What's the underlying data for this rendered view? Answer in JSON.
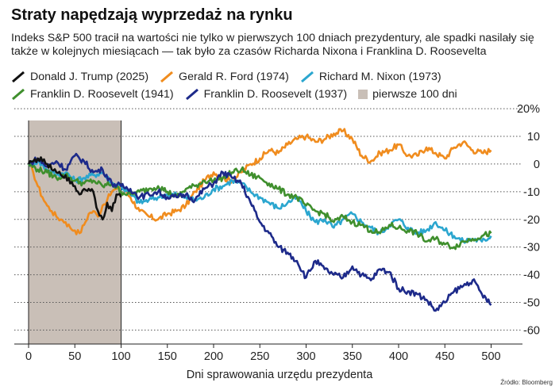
{
  "title": "Straty napędzają wyprzedaż na rynku",
  "subtitle": "Indeks S&P 500 tracił na wartości nie tylko w pierwszych 100 dniach prezydentury, ale spadki nasilały się także w kolejnych miesiącach — tak było za czasów Richarda Nixona i Franklina D. Roosevelta",
  "source": "Źródło: Bloomberg",
  "legend": {
    "trump": "Donald J. Trump (2025)",
    "ford": "Gerald R. Ford (1974)",
    "nixon": "Richard M. Nixon (1973)",
    "fdr41": "Franklin D. Roosevelt (1941)",
    "fdr37": "Franklin D. Roosevelt (1937)",
    "shade": "pierwsze 100 dni"
  },
  "chart_data": {
    "type": "line",
    "title": "Straty napędzają wyprzedaż na rynku",
    "xlabel": "Dni sprawowania urzędu prezydenta",
    "ylabel": "",
    "xlim": [
      0,
      520
    ],
    "ylim": [
      -65,
      22
    ],
    "x_ticks": [
      0,
      50,
      100,
      150,
      200,
      250,
      300,
      350,
      400,
      450,
      500
    ],
    "y_ticks": [
      -60,
      -50,
      -40,
      -30,
      -20,
      -10,
      0,
      10,
      20
    ],
    "y_tick_labels": [
      "-60",
      "-50",
      "-40",
      "-30",
      "-20",
      "-10",
      "0",
      "10",
      "20%"
    ],
    "grid": "horizontal dotted",
    "shaded_region": {
      "x": [
        0,
        100
      ],
      "label": "pierwsze 100 dni",
      "color": "#c9bfb7"
    },
    "series": [
      {
        "name": "Gerald R. Ford (1974)",
        "color": "#f08c1e",
        "x": [
          0,
          5,
          10,
          15,
          20,
          25,
          30,
          35,
          40,
          45,
          50,
          55,
          60,
          65,
          70,
          75,
          80,
          85,
          90,
          95,
          100,
          110,
          120,
          130,
          140,
          150,
          160,
          170,
          180,
          190,
          200,
          210,
          220,
          230,
          240,
          250,
          260,
          270,
          280,
          290,
          300,
          310,
          320,
          330,
          340,
          350,
          360,
          370,
          380,
          390,
          400,
          410,
          420,
          430,
          440,
          450,
          460,
          470,
          480,
          490,
          500
        ],
        "y": [
          0,
          -3,
          -8,
          -12,
          -15,
          -17,
          -19,
          -20,
          -21,
          -23,
          -24,
          -25,
          -22,
          -18,
          -17,
          -19,
          -15,
          -13,
          -10,
          -9,
          -8,
          -12,
          -17,
          -19,
          -20,
          -18,
          -17,
          -15,
          -10,
          -6,
          -3,
          -5,
          -6,
          -3,
          0,
          2,
          5,
          4,
          7,
          9,
          10,
          8,
          9,
          11,
          12,
          9,
          3,
          1,
          4,
          5,
          7,
          3,
          3,
          6,
          4,
          2,
          6,
          8,
          5,
          4,
          5
        ]
      },
      {
        "name": "Richard M. Nixon (1973)",
        "color": "#2ba6cf",
        "x": [
          0,
          10,
          20,
          30,
          40,
          50,
          60,
          70,
          80,
          90,
          100,
          110,
          120,
          130,
          140,
          150,
          160,
          170,
          180,
          190,
          200,
          210,
          220,
          230,
          240,
          250,
          260,
          270,
          280,
          290,
          300,
          310,
          320,
          330,
          340,
          350,
          360,
          370,
          380,
          390,
          400,
          410,
          420,
          430,
          440,
          450,
          460,
          470,
          480,
          490,
          500
        ],
        "y": [
          0,
          1,
          -2,
          -4,
          -3,
          -6,
          -5,
          -4,
          -3,
          -7,
          -8,
          -11,
          -14,
          -13,
          -12,
          -11,
          -11,
          -12,
          -13,
          -12,
          -9,
          -8,
          -6,
          -7,
          -10,
          -12,
          -14,
          -16,
          -14,
          -12,
          -17,
          -21,
          -20,
          -23,
          -20,
          -18,
          -21,
          -23,
          -25,
          -22,
          -20,
          -23,
          -25,
          -24,
          -21,
          -24,
          -26,
          -28,
          -27,
          -28,
          -26
        ]
      },
      {
        "name": "Franklin D. Roosevelt (1941)",
        "color": "#3f8f2d",
        "x": [
          0,
          10,
          20,
          30,
          40,
          50,
          60,
          70,
          80,
          90,
          100,
          110,
          120,
          130,
          140,
          150,
          160,
          170,
          180,
          190,
          200,
          210,
          220,
          230,
          240,
          250,
          260,
          270,
          280,
          290,
          300,
          310,
          320,
          330,
          340,
          350,
          360,
          370,
          380,
          390,
          400,
          410,
          420,
          430,
          440,
          450,
          460,
          470,
          480,
          490,
          500
        ],
        "y": [
          0,
          -2,
          -3,
          -5,
          -4,
          -6,
          -7,
          -6,
          -8,
          -7,
          -10,
          -11,
          -10,
          -9,
          -8,
          -10,
          -12,
          -9,
          -8,
          -6,
          -6,
          -5,
          -3,
          -2,
          -4,
          -5,
          -7,
          -9,
          -11,
          -12,
          -15,
          -17,
          -18,
          -21,
          -19,
          -21,
          -22,
          -24,
          -25,
          -22,
          -23,
          -24,
          -25,
          -28,
          -27,
          -29,
          -30,
          -28,
          -27,
          -26,
          -25
        ]
      },
      {
        "name": "Franklin D. Roosevelt (1937)",
        "color": "#1d2a8a",
        "x": [
          0,
          10,
          20,
          30,
          40,
          50,
          60,
          70,
          80,
          90,
          100,
          110,
          120,
          130,
          140,
          150,
          160,
          170,
          180,
          190,
          200,
          210,
          220,
          230,
          240,
          250,
          260,
          270,
          280,
          290,
          300,
          310,
          320,
          330,
          340,
          350,
          360,
          370,
          380,
          390,
          400,
          410,
          420,
          430,
          440,
          450,
          460,
          470,
          480,
          490,
          500
        ],
        "y": [
          0,
          2,
          -1,
          1,
          -2,
          3,
          1,
          -3,
          -2,
          -7,
          -8,
          -9,
          -12,
          -11,
          -10,
          -12,
          -12,
          -11,
          -13,
          -9,
          -7,
          -3,
          -5,
          -7,
          -14,
          -21,
          -25,
          -30,
          -32,
          -35,
          -41,
          -35,
          -38,
          -40,
          -41,
          -37,
          -40,
          -42,
          -38,
          -39,
          -45,
          -46,
          -47,
          -49,
          -53,
          -50,
          -46,
          -44,
          -42,
          -47,
          -51
        ]
      },
      {
        "name": "Donald J. Trump (2025)",
        "color": "#111111",
        "x": [
          0,
          5,
          10,
          15,
          20,
          25,
          30,
          35,
          40,
          45,
          50,
          55,
          60,
          65,
          70,
          75,
          80,
          85,
          90,
          95,
          100
        ],
        "y": [
          0,
          1,
          2,
          1,
          0,
          -2,
          -3,
          -4,
          -4,
          -7,
          -8,
          -11,
          -9,
          -9,
          -10,
          -17,
          -20,
          -14,
          -17,
          -11,
          -12
        ]
      }
    ]
  }
}
